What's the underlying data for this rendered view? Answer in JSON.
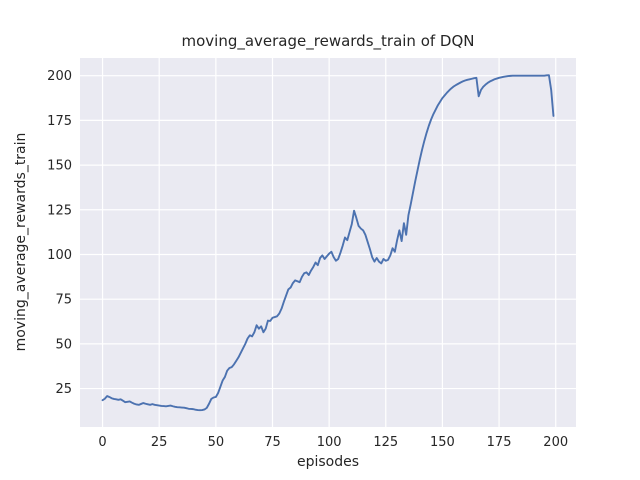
{
  "figure": {
    "background": "#ffffff"
  },
  "chart_data": {
    "type": "line",
    "title": "moving_average_rewards_train of DQN",
    "xlabel": "episodes",
    "ylabel": "moving_average_rewards_train",
    "x_ticks": [
      0,
      25,
      50,
      75,
      100,
      125,
      150,
      175,
      200
    ],
    "y_ticks": [
      25,
      50,
      75,
      100,
      125,
      150,
      175,
      200
    ],
    "xlim": [
      -9.95,
      208.95
    ],
    "ylim": [
      3.5,
      209.9
    ],
    "grid": true,
    "legend": "none",
    "style": {
      "plot_bg": "#eaeaf2",
      "grid_color": "#ffffff",
      "line_color": "#4c72b0",
      "text_color": "#262626"
    },
    "series": [
      {
        "name": "DQN",
        "points": [
          [
            0,
            18.5
          ],
          [
            1,
            19.3
          ],
          [
            2,
            20.8
          ],
          [
            3,
            20.3
          ],
          [
            4,
            19.6
          ],
          [
            5,
            19.2
          ],
          [
            6,
            19.0
          ],
          [
            7,
            18.7
          ],
          [
            8,
            19.0
          ],
          [
            9,
            18.2
          ],
          [
            10,
            17.4
          ],
          [
            11,
            17.6
          ],
          [
            12,
            17.8
          ],
          [
            13,
            17.1
          ],
          [
            14,
            16.5
          ],
          [
            15,
            16.1
          ],
          [
            16,
            15.9
          ],
          [
            17,
            16.4
          ],
          [
            18,
            16.9
          ],
          [
            19,
            16.5
          ],
          [
            20,
            16.2
          ],
          [
            21,
            15.9
          ],
          [
            22,
            16.3
          ],
          [
            23,
            15.9
          ],
          [
            24,
            15.7
          ],
          [
            25,
            15.5
          ],
          [
            26,
            15.3
          ],
          [
            27,
            15.2
          ],
          [
            28,
            15.1
          ],
          [
            29,
            15.3
          ],
          [
            30,
            15.5
          ],
          [
            31,
            15.1
          ],
          [
            32,
            14.8
          ],
          [
            33,
            14.6
          ],
          [
            34,
            14.5
          ],
          [
            35,
            14.4
          ],
          [
            36,
            14.3
          ],
          [
            37,
            14.0
          ],
          [
            38,
            13.7
          ],
          [
            39,
            13.6
          ],
          [
            40,
            13.5
          ],
          [
            41,
            13.2
          ],
          [
            42,
            13.0
          ],
          [
            43,
            12.9
          ],
          [
            44,
            13.0
          ],
          [
            45,
            13.3
          ],
          [
            46,
            14.2
          ],
          [
            47,
            16.5
          ],
          [
            48,
            19.2
          ],
          [
            49,
            20.0
          ],
          [
            50,
            20.3
          ],
          [
            51,
            22.5
          ],
          [
            52,
            26.0
          ],
          [
            53,
            29.5
          ],
          [
            54,
            31.5
          ],
          [
            55,
            35.0
          ],
          [
            56,
            36.5
          ],
          [
            57,
            37.0
          ],
          [
            58,
            38.5
          ],
          [
            59,
            40.5
          ],
          [
            60,
            42.5
          ],
          [
            61,
            45.0
          ],
          [
            62,
            47.5
          ],
          [
            63,
            50.0
          ],
          [
            64,
            53.0
          ],
          [
            65,
            54.8
          ],
          [
            66,
            54.2
          ],
          [
            67,
            56.5
          ],
          [
            68,
            60.4
          ],
          [
            69,
            58.5
          ],
          [
            70,
            59.8
          ],
          [
            71,
            56.5
          ],
          [
            72,
            58.5
          ],
          [
            73,
            63.0
          ],
          [
            74,
            62.8
          ],
          [
            75,
            64.6
          ],
          [
            76,
            65.0
          ],
          [
            77,
            65.4
          ],
          [
            78,
            67.0
          ],
          [
            79,
            69.7
          ],
          [
            80,
            73.5
          ],
          [
            81,
            77.0
          ],
          [
            82,
            80.5
          ],
          [
            83,
            81.5
          ],
          [
            84,
            84.0
          ],
          [
            85,
            85.5
          ],
          [
            86,
            85.0
          ],
          [
            87,
            84.5
          ],
          [
            88,
            87.5
          ],
          [
            89,
            89.5
          ],
          [
            90,
            90.0
          ],
          [
            91,
            88.5
          ],
          [
            92,
            91.0
          ],
          [
            93,
            93.0
          ],
          [
            94,
            95.5
          ],
          [
            95,
            94.0
          ],
          [
            96,
            98.0
          ],
          [
            97,
            99.5
          ],
          [
            98,
            97.5
          ],
          [
            99,
            99.0
          ],
          [
            100,
            100.5
          ],
          [
            101,
            101.5
          ],
          [
            102,
            98.5
          ],
          [
            103,
            96.5
          ],
          [
            104,
            97.5
          ],
          [
            105,
            101.0
          ],
          [
            106,
            105.0
          ],
          [
            107,
            109.5
          ],
          [
            108,
            108.0
          ],
          [
            109,
            112.5
          ],
          [
            110,
            117.0
          ],
          [
            111,
            124.5
          ],
          [
            112,
            120.5
          ],
          [
            113,
            116.0
          ],
          [
            114,
            114.5
          ],
          [
            115,
            113.5
          ],
          [
            116,
            111.0
          ],
          [
            117,
            107.0
          ],
          [
            118,
            103.0
          ],
          [
            119,
            98.5
          ],
          [
            120,
            96.0
          ],
          [
            121,
            98.0
          ],
          [
            122,
            96.0
          ],
          [
            123,
            95.0
          ],
          [
            124,
            97.5
          ],
          [
            125,
            96.5
          ],
          [
            126,
            97.0
          ],
          [
            127,
            99.5
          ],
          [
            128,
            103.5
          ],
          [
            129,
            101.5
          ],
          [
            130,
            108.0
          ],
          [
            131,
            113.5
          ],
          [
            132,
            107.5
          ],
          [
            133,
            117.5
          ],
          [
            134,
            111.0
          ],
          [
            135,
            122.0
          ],
          [
            136,
            128.0
          ],
          [
            137,
            134.5
          ],
          [
            138,
            141.0
          ],
          [
            139,
            147.0
          ],
          [
            140,
            153.0
          ],
          [
            141,
            158.5
          ],
          [
            142,
            163.5
          ],
          [
            143,
            168.0
          ],
          [
            144,
            172.0
          ],
          [
            145,
            175.5
          ],
          [
            146,
            178.5
          ],
          [
            147,
            181.0
          ],
          [
            148,
            183.5
          ],
          [
            149,
            185.5
          ],
          [
            150,
            187.5
          ],
          [
            151,
            189.0
          ],
          [
            152,
            190.5
          ],
          [
            153,
            191.8
          ],
          [
            154,
            193.0
          ],
          [
            155,
            194.0
          ],
          [
            156,
            194.8
          ],
          [
            157,
            195.5
          ],
          [
            158,
            196.2
          ],
          [
            159,
            196.8
          ],
          [
            160,
            197.3
          ],
          [
            161,
            197.7
          ],
          [
            162,
            198.0
          ],
          [
            163,
            198.3
          ],
          [
            164,
            198.6
          ],
          [
            165,
            198.8
          ],
          [
            166,
            188.5
          ],
          [
            167,
            192.0
          ],
          [
            168,
            193.8
          ],
          [
            169,
            195.0
          ],
          [
            170,
            196.0
          ],
          [
            171,
            196.8
          ],
          [
            172,
            197.4
          ],
          [
            173,
            198.0
          ],
          [
            174,
            198.4
          ],
          [
            175,
            198.8
          ],
          [
            176,
            199.1
          ],
          [
            177,
            199.4
          ],
          [
            178,
            199.6
          ],
          [
            179,
            199.8
          ],
          [
            180,
            199.9
          ],
          [
            181,
            200.0
          ],
          [
            182,
            200.0
          ],
          [
            183,
            200.0
          ],
          [
            184,
            200.0
          ],
          [
            185,
            200.0
          ],
          [
            186,
            200.0
          ],
          [
            187,
            200.0
          ],
          [
            188,
            200.0
          ],
          [
            189,
            200.0
          ],
          [
            190,
            200.0
          ],
          [
            191,
            200.0
          ],
          [
            192,
            200.0
          ],
          [
            193,
            200.0
          ],
          [
            194,
            200.0
          ],
          [
            195,
            200.0
          ],
          [
            196,
            200.2
          ],
          [
            197,
            200.3
          ],
          [
            198,
            192.0
          ],
          [
            199,
            177.5
          ]
        ]
      }
    ]
  }
}
